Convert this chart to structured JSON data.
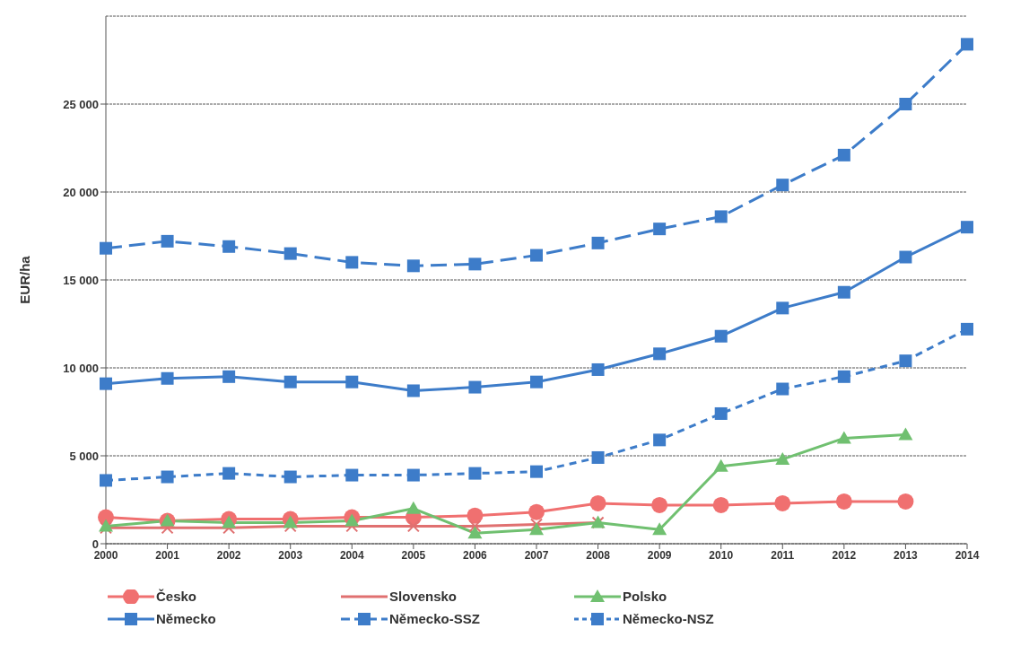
{
  "chart_data": {
    "type": "line",
    "ylabel": "EUR/ha",
    "categories": [
      "2000",
      "2001",
      "2002",
      "2003",
      "2004",
      "2005",
      "2006",
      "2007",
      "2008",
      "2009",
      "2010",
      "2011",
      "2012",
      "2013",
      "2014"
    ],
    "ylim": [
      0,
      30000
    ],
    "yticks": [
      0,
      {
        "value": 5000,
        "label": "5 000"
      },
      {
        "value": 10000,
        "label": "10 000"
      },
      {
        "value": 15000,
        "label": "15 000"
      },
      {
        "value": 20000,
        "label": "20 000"
      },
      {
        "value": 25000,
        "label": "25 000"
      }
    ],
    "grid": "y",
    "legend": "bottom",
    "series": [
      {
        "name": "Česko",
        "color": "#f07070",
        "marker": "circle",
        "line_style": "solid",
        "values": [
          1500,
          1300,
          1400,
          1400,
          1500,
          1500,
          1600,
          1800,
          2300,
          2200,
          2200,
          2300,
          2400,
          2400,
          null
        ]
      },
      {
        "name": "Slovensko",
        "color": "#e07070",
        "marker": "cross",
        "line_style": "solid",
        "values": [
          900,
          900,
          900,
          1000,
          1000,
          1000,
          1000,
          1100,
          1200,
          null,
          null,
          null,
          null,
          null,
          null
        ]
      },
      {
        "name": "Polsko",
        "color": "#70c070",
        "marker": "triangle",
        "line_style": "solid",
        "values": [
          1000,
          1300,
          1200,
          1200,
          1300,
          2000,
          600,
          800,
          1200,
          800,
          4400,
          4800,
          6000,
          6200,
          null
        ]
      },
      {
        "name": "Německo",
        "color": "#3d7cc9",
        "marker": "square",
        "line_style": "solid",
        "values": [
          9100,
          9400,
          9500,
          9200,
          9200,
          8700,
          8900,
          9200,
          9900,
          10800,
          11800,
          13400,
          14300,
          16300,
          18000
        ]
      },
      {
        "name": "Německo-SSZ",
        "color": "#3d7cc9",
        "marker": "square",
        "line_style": "dashed",
        "values": [
          16800,
          17200,
          16900,
          16500,
          16000,
          15800,
          15900,
          16400,
          17100,
          17900,
          18600,
          20400,
          22100,
          25000,
          28400
        ]
      },
      {
        "name": "Německo-NSZ",
        "color": "#3d7cc9",
        "marker": "square",
        "line_style": "dotted",
        "values": [
          3600,
          3800,
          4000,
          3800,
          3900,
          3900,
          4000,
          4100,
          4900,
          5900,
          7400,
          8800,
          9500,
          10400,
          12200
        ]
      }
    ]
  }
}
